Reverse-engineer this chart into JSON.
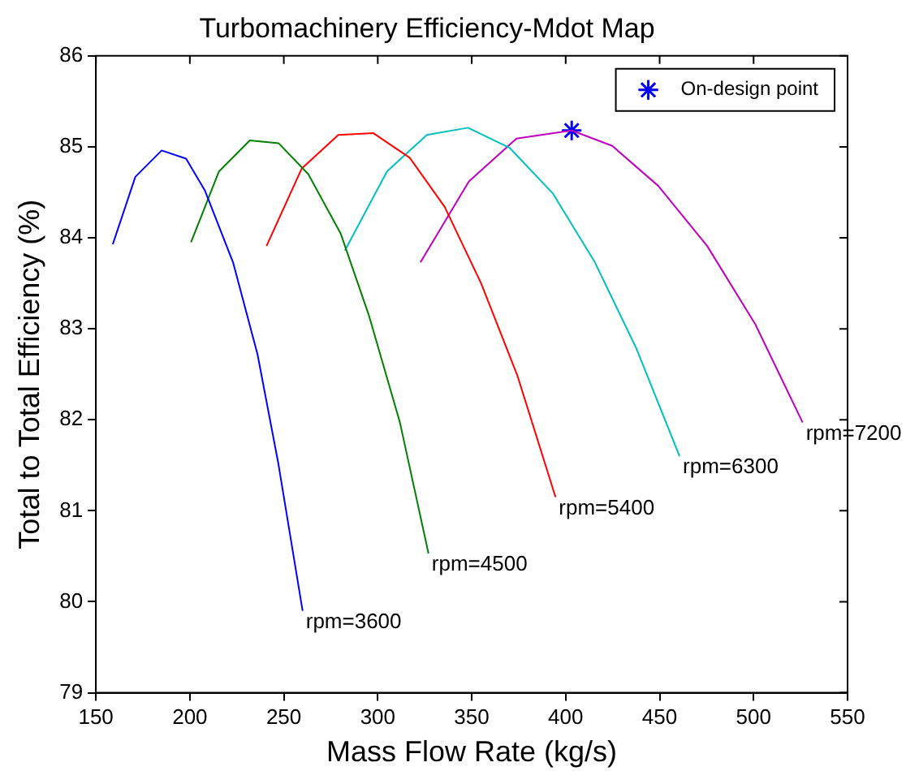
{
  "chart_data": {
    "type": "line",
    "title": "Turbomachinery Efficiency-Mdot Map",
    "xlabel": "Mass Flow Rate (kg/s)",
    "ylabel": "Total to Total Efficiency (%)",
    "xlim": [
      150,
      550
    ],
    "xticks": [
      150,
      200,
      250,
      300,
      350,
      400,
      450,
      500,
      550
    ],
    "ylim": [
      79,
      86
    ],
    "yticks": [
      79,
      80,
      81,
      82,
      83,
      84,
      85,
      86
    ],
    "grid": false,
    "legend": "top right",
    "marker": "none",
    "line_style": "solid",
    "series": [
      {
        "color": "#0000ff",
        "x": [
          159,
          171,
          185,
          198,
          208,
          223,
          236,
          247,
          260
        ],
        "values": [
          83.93,
          84.67,
          84.96,
          84.87,
          84.52,
          83.73,
          82.72,
          81.53,
          79.9
        ]
      },
      {
        "color": "#008000",
        "x": [
          200.6,
          215.5,
          231.9,
          247.2,
          263,
          280.2,
          295.4,
          311.8,
          327
        ],
        "values": [
          83.95,
          84.73,
          85.07,
          85.04,
          84.7,
          84.05,
          83.14,
          81.97,
          80.53
        ]
      },
      {
        "color": "#ff0000",
        "x": [
          240.8,
          259.5,
          279,
          297.7,
          317,
          335.6,
          355,
          374.4,
          394.6
        ],
        "values": [
          83.91,
          84.76,
          85.13,
          85.15,
          84.88,
          84.34,
          83.5,
          82.48,
          81.15
        ]
      },
      {
        "color": "#00bfbf",
        "x": [
          282.5,
          304.9,
          326.1,
          348,
          370.1,
          393.1,
          415.3,
          437.7,
          460.6
        ],
        "values": [
          83.86,
          84.73,
          85.13,
          85.21,
          84.99,
          84.49,
          83.74,
          82.78,
          81.6
        ]
      },
      {
        "color": "#bf00bf",
        "x": [
          322.7,
          348.5,
          373.8,
          403.2,
          424.8,
          449.3,
          475.3,
          500.9,
          526.1
        ],
        "values": [
          83.73,
          84.62,
          85.09,
          85.18,
          85.01,
          84.57,
          83.91,
          83.05,
          81.97
        ]
      },
      {
        "type": "scatter",
        "name": "On-design point",
        "color": "#0000ff",
        "marker": "cross",
        "x": [
          403.2
        ],
        "values": [
          85.18
        ]
      }
    ],
    "annotations": [
      {
        "text": "rpm=3600",
        "x": 260,
        "y": 79.9
      },
      {
        "text": "rpm=4500",
        "x": 327,
        "y": 80.53
      },
      {
        "text": "rpm=5400",
        "x": 394.6,
        "y": 81.15
      },
      {
        "text": "rpm=6300",
        "x": 460.6,
        "y": 81.6
      },
      {
        "text": "rpm=7200",
        "x": 526.1,
        "y": 81.97
      }
    ]
  }
}
